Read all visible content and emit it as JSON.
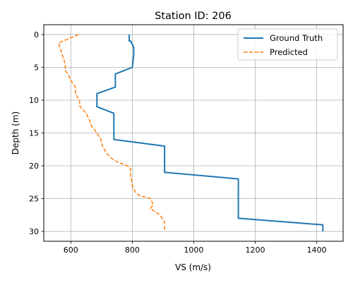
{
  "chart_data": {
    "type": "line",
    "title": "Station ID: 206",
    "xlabel": "VS (m/s)",
    "ylabel": "Depth (m)",
    "xlim": [
      512,
      1486
    ],
    "ylim": [
      31.5,
      -1.5
    ],
    "y_inverted": true,
    "grid": true,
    "legend_position": "top-right",
    "x_ticks": [
      600,
      800,
      1000,
      1200,
      1400
    ],
    "y_ticks": [
      0,
      5,
      10,
      15,
      20,
      25,
      30
    ],
    "series": [
      {
        "name": "Ground Truth",
        "color": "#1f77b4",
        "style": "solid",
        "x": [
          790,
          790,
          795,
          805,
          805,
          805,
          800,
          800,
          745,
          745,
          685,
          685,
          740,
          740,
          905,
          905,
          1145,
          1145,
          1420,
          1420
        ],
        "y": [
          0,
          1,
          1,
          2,
          2,
          3,
          5,
          5,
          6,
          8,
          9,
          11,
          12,
          16,
          17,
          21,
          22,
          28,
          29,
          30
        ]
      },
      {
        "name": "Predicted",
        "color": "#ff7f0e",
        "style": "dashed",
        "x": [
          625,
          600,
          560,
          568,
          575,
          582,
          582,
          590,
          600,
          615,
          615,
          628,
          630,
          650,
          660,
          668,
          685,
          698,
          703,
          715,
          725,
          736,
          755,
          785,
          795,
          793,
          797,
          800,
          810,
          822,
          860,
          868,
          858,
          890,
          905,
          905
        ],
        "y": [
          0,
          0.5,
          1.3,
          2.5,
          3.5,
          4.5,
          5.5,
          6,
          7,
          8,
          9,
          10,
          11,
          12,
          13,
          14,
          15,
          16,
          17,
          18,
          18.5,
          19,
          19.5,
          20,
          20.5,
          21,
          22,
          23,
          24,
          24.5,
          25,
          26,
          26.5,
          27.5,
          28.5,
          30
        ]
      }
    ]
  }
}
